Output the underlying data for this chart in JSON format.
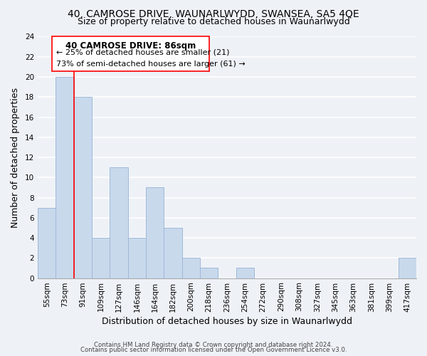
{
  "title1": "40, CAMROSE DRIVE, WAUNARLWYDD, SWANSEA, SA5 4QE",
  "title2": "Size of property relative to detached houses in Waunarlwydd",
  "xlabel": "Distribution of detached houses by size in Waunarlwydd",
  "ylabel": "Number of detached properties",
  "bin_labels": [
    "55sqm",
    "73sqm",
    "91sqm",
    "109sqm",
    "127sqm",
    "146sqm",
    "164sqm",
    "182sqm",
    "200sqm",
    "218sqm",
    "236sqm",
    "254sqm",
    "272sqm",
    "290sqm",
    "308sqm",
    "327sqm",
    "345sqm",
    "363sqm",
    "381sqm",
    "399sqm",
    "417sqm"
  ],
  "bar_heights": [
    7,
    20,
    18,
    4,
    11,
    4,
    9,
    5,
    2,
    1,
    0,
    1,
    0,
    0,
    0,
    0,
    0,
    0,
    0,
    0,
    2
  ],
  "bar_color": "#c8d9ec",
  "bar_edge_color": "#a0b8d8",
  "ylim": [
    0,
    24
  ],
  "yticks": [
    0,
    2,
    4,
    6,
    8,
    10,
    12,
    14,
    16,
    18,
    20,
    22,
    24
  ],
  "annotation_title": "40 CAMROSE DRIVE: 86sqm",
  "annotation_line1": "← 25% of detached houses are smaller (21)",
  "annotation_line2": "73% of semi-detached houses are larger (61) →",
  "red_line_bin": 1.5,
  "footer1": "Contains HM Land Registry data © Crown copyright and database right 2024.",
  "footer2": "Contains public sector information licensed under the Open Government Licence v3.0.",
  "background_color": "#eef2f7",
  "grid_color": "#ffffff",
  "title_fontsize": 10,
  "subtitle_fontsize": 9,
  "axis_label_fontsize": 9,
  "tick_fontsize": 7.5
}
